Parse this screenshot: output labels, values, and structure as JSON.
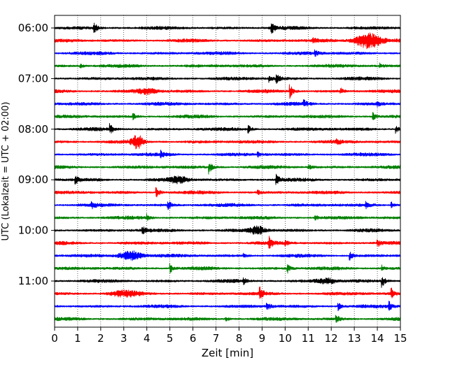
{
  "chart_data": {
    "type": "line",
    "subtype": "seismic-helicorder",
    "xlabel": "Zeit  [min]",
    "ylabel": "UTC (Lokalzeit = UTC + 02:00)",
    "xlim": [
      0,
      15
    ],
    "x_ticks": [
      0,
      1,
      2,
      3,
      4,
      5,
      6,
      7,
      8,
      9,
      10,
      11,
      12,
      13,
      14,
      15
    ],
    "x_tick_labels": [
      "0",
      "1",
      "2",
      "3",
      "4",
      "5",
      "6",
      "7",
      "8",
      "9",
      "10",
      "11",
      "12",
      "13",
      "14",
      "15"
    ],
    "y_tick_labels": [
      "06:00",
      "07:00",
      "08:00",
      "09:00",
      "10:00",
      "11:00"
    ],
    "vertical_grid": true,
    "grid_style": "dotted",
    "trace_colors": [
      "#000000",
      "#ff0000",
      "#0000ff",
      "#008000"
    ],
    "rows_per_hour": 4,
    "minutes_per_row": 15,
    "rows": [
      {
        "start": "06:00",
        "color": "#000000",
        "events": [
          {
            "t": 1.7,
            "a": 0.7
          },
          {
            "t": 9.4,
            "a": 0.8
          }
        ]
      },
      {
        "start": "06:15",
        "color": "#ff0000",
        "events": [
          {
            "t": 13.6,
            "a": 1.0,
            "burst": 1.4
          },
          {
            "t": 11.2,
            "a": 0.3
          }
        ]
      },
      {
        "start": "06:30",
        "color": "#0000ff",
        "events": [
          {
            "t": 11.3,
            "a": 0.35
          }
        ]
      },
      {
        "start": "06:45",
        "color": "#008000",
        "events": [
          {
            "t": 1.1,
            "a": 0.3
          },
          {
            "t": 14.1,
            "a": 0.3
          }
        ]
      },
      {
        "start": "07:00",
        "color": "#000000",
        "events": [
          {
            "t": 9.6,
            "a": 0.8
          },
          {
            "t": 9.3,
            "a": 0.4
          }
        ]
      },
      {
        "start": "07:15",
        "color": "#ff0000",
        "events": [
          {
            "t": 10.2,
            "a": 0.9
          },
          {
            "t": 12.4,
            "a": 0.4
          },
          {
            "t": 4.0,
            "a": 0.3,
            "burst": 1.0
          }
        ]
      },
      {
        "start": "07:30",
        "color": "#0000ff",
        "events": [
          {
            "t": 10.8,
            "a": 0.45
          },
          {
            "t": 14.0,
            "a": 0.3
          }
        ]
      },
      {
        "start": "07:45",
        "color": "#008000",
        "events": [
          {
            "t": 3.4,
            "a": 0.4
          },
          {
            "t": 13.8,
            "a": 0.5
          }
        ]
      },
      {
        "start": "08:00",
        "color": "#000000",
        "events": [
          {
            "t": 2.4,
            "a": 0.6
          },
          {
            "t": 8.4,
            "a": 0.5
          },
          {
            "t": 14.8,
            "a": 0.5
          }
        ]
      },
      {
        "start": "08:15",
        "color": "#ff0000",
        "events": [
          {
            "t": 3.6,
            "a": 0.8,
            "burst": 0.6
          },
          {
            "t": 12.2,
            "a": 0.4
          }
        ]
      },
      {
        "start": "08:30",
        "color": "#0000ff",
        "events": [
          {
            "t": 4.6,
            "a": 0.4
          },
          {
            "t": 8.8,
            "a": 0.3
          }
        ]
      },
      {
        "start": "08:45",
        "color": "#008000",
        "events": [
          {
            "t": 6.7,
            "a": 0.8
          },
          {
            "t": 11.0,
            "a": 0.4
          }
        ]
      },
      {
        "start": "09:00",
        "color": "#000000",
        "events": [
          {
            "t": 0.9,
            "a": 0.5
          },
          {
            "t": 9.6,
            "a": 0.8
          },
          {
            "t": 5.4,
            "a": 0.35,
            "burst": 1.0
          }
        ]
      },
      {
        "start": "09:15",
        "color": "#ff0000",
        "events": [
          {
            "t": 4.4,
            "a": 0.9
          },
          {
            "t": 8.8,
            "a": 0.3
          }
        ]
      },
      {
        "start": "09:30",
        "color": "#0000ff",
        "events": [
          {
            "t": 4.9,
            "a": 0.7
          },
          {
            "t": 1.6,
            "a": 0.4
          },
          {
            "t": 13.5,
            "a": 0.4
          },
          {
            "t": 14.6,
            "a": 0.4
          }
        ]
      },
      {
        "start": "09:45",
        "color": "#008000",
        "events": [
          {
            "t": 4.0,
            "a": 0.4
          },
          {
            "t": 11.3,
            "a": 0.3
          }
        ]
      },
      {
        "start": "10:00",
        "color": "#000000",
        "events": [
          {
            "t": 3.8,
            "a": 0.5
          },
          {
            "t": 8.8,
            "a": 0.5,
            "burst": 0.8
          }
        ]
      },
      {
        "start": "10:15",
        "color": "#ff0000",
        "events": [
          {
            "t": 9.3,
            "a": 0.8
          },
          {
            "t": 14.0,
            "a": 0.5
          },
          {
            "t": 10.0,
            "a": 0.3
          }
        ]
      },
      {
        "start": "10:30",
        "color": "#0000ff",
        "events": [
          {
            "t": 3.3,
            "a": 0.6,
            "burst": 1.2
          },
          {
            "t": 12.8,
            "a": 0.6
          },
          {
            "t": 8.2,
            "a": 0.3
          }
        ]
      },
      {
        "start": "10:45",
        "color": "#008000",
        "events": [
          {
            "t": 5.0,
            "a": 0.7
          },
          {
            "t": 10.1,
            "a": 0.6
          },
          {
            "t": 14.2,
            "a": 0.4
          }
        ]
      },
      {
        "start": "11:00",
        "color": "#000000",
        "events": [
          {
            "t": 14.2,
            "a": 0.8
          },
          {
            "t": 8.2,
            "a": 0.3
          },
          {
            "t": 11.8,
            "a": 0.3,
            "burst": 1.0
          }
        ]
      },
      {
        "start": "11:15",
        "color": "#ff0000",
        "events": [
          {
            "t": 8.9,
            "a": 0.8
          },
          {
            "t": 14.6,
            "a": 0.7
          },
          {
            "t": 3.0,
            "a": 0.3,
            "burst": 1.4
          }
        ]
      },
      {
        "start": "11:30",
        "color": "#0000ff",
        "events": [
          {
            "t": 9.2,
            "a": 0.6
          },
          {
            "t": 12.3,
            "a": 0.5
          },
          {
            "t": 14.5,
            "a": 0.6
          }
        ]
      },
      {
        "start": "11:45",
        "color": "#008000",
        "events": [
          {
            "t": 12.2,
            "a": 0.6
          },
          {
            "t": 7.4,
            "a": 0.3
          }
        ]
      }
    ]
  }
}
